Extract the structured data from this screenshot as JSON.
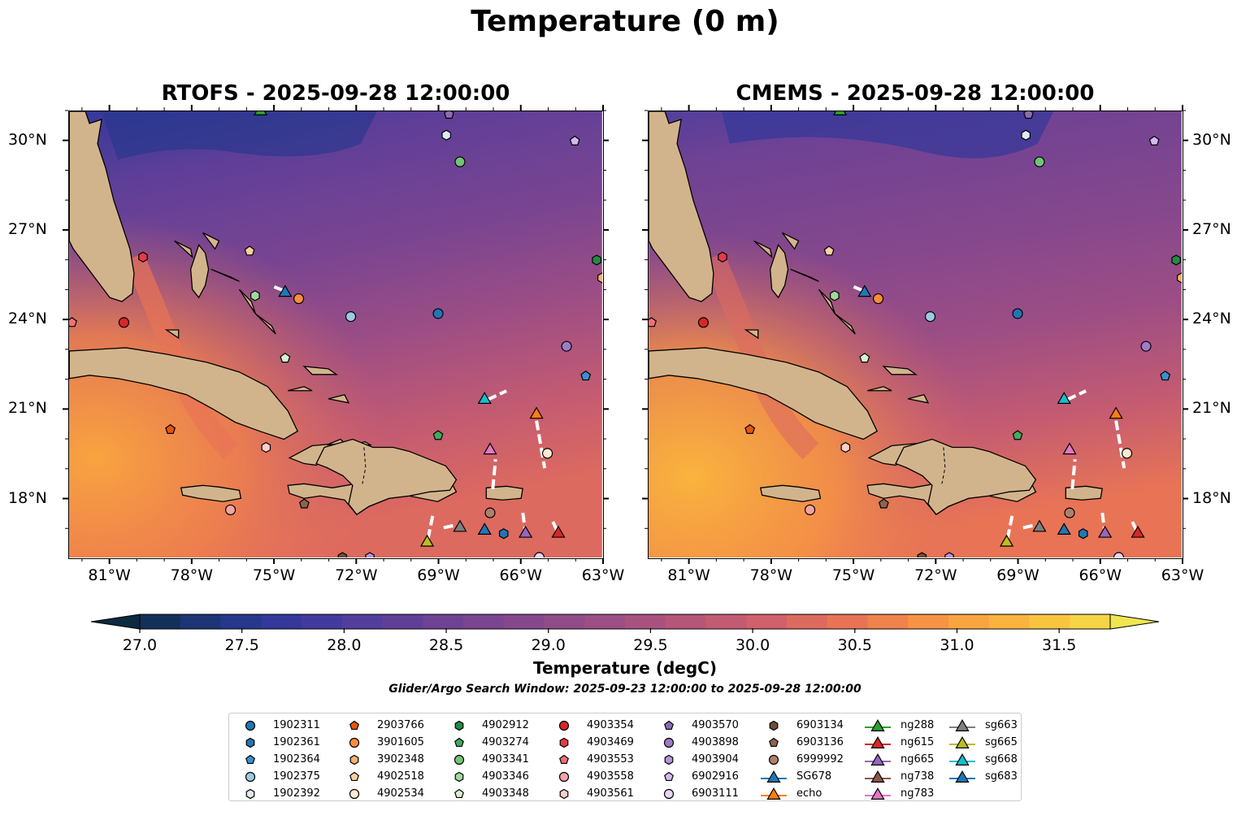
{
  "title": "Temperature (0 m)",
  "panels": [
    {
      "id": "rtofs",
      "title": "RTOFS - 2025-09-28 12:00:00"
    },
    {
      "id": "cmems",
      "title": "CMEMS - 2025-09-28 12:00:00"
    }
  ],
  "axes": {
    "lon_ticks": [
      "81°W",
      "78°W",
      "75°W",
      "72°W",
      "69°W",
      "66°W",
      "63°W"
    ],
    "lat_ticks": [
      "30°N",
      "27°N",
      "24°N",
      "21°N",
      "18°N"
    ]
  },
  "colorbar": {
    "label": "Temperature (degC)",
    "ticks": [
      "27.0",
      "27.5",
      "28.0",
      "28.5",
      "29.0",
      "29.5",
      "30.0",
      "30.5",
      "31.0",
      "31.5"
    ],
    "colors": [
      "#0b2a3f",
      "#13305a",
      "#1d3574",
      "#27378c",
      "#33389a",
      "#433a9e",
      "#523e9c",
      "#603f98",
      "#6e4294",
      "#7a4590",
      "#86488c",
      "#914b88",
      "#9d4e84",
      "#a9527f",
      "#b65679",
      "#c35b72",
      "#d0616a",
      "#dd6a5f",
      "#e87455",
      "#f1824b",
      "#f69344",
      "#f9a43f",
      "#fab43d",
      "#f9c43f",
      "#f5d546",
      "#efe650"
    ]
  },
  "search_window": "Glider/Argo Search Window: 2025-09-23 12:00:00 to 2025-09-28 12:00:00",
  "legend": [
    {
      "label": "1902311",
      "marker": "circle",
      "color": "#1f77b4"
    },
    {
      "label": "1902361",
      "marker": "hexagon",
      "color": "#1f77b4"
    },
    {
      "label": "1902364",
      "marker": "pentagon",
      "color": "#3a8fd1"
    },
    {
      "label": "1902375",
      "marker": "circle",
      "color": "#9ecae1"
    },
    {
      "label": "1902392",
      "marker": "hexagon",
      "color": "#deebf7"
    },
    {
      "label": "2903766",
      "marker": "pentagon",
      "color": "#e6550d"
    },
    {
      "label": "3901605",
      "marker": "circle",
      "color": "#fd8d3c"
    },
    {
      "label": "3902348",
      "marker": "hexagon",
      "color": "#fdae6b"
    },
    {
      "label": "4902518",
      "marker": "pentagon",
      "color": "#fdd0a2"
    },
    {
      "label": "4902534",
      "marker": "circle",
      "color": "#feead2"
    },
    {
      "label": "4902912",
      "marker": "hexagon",
      "color": "#238b45"
    },
    {
      "label": "4903274",
      "marker": "pentagon",
      "color": "#41ab5d"
    },
    {
      "label": "4903341",
      "marker": "circle",
      "color": "#74c476"
    },
    {
      "label": "4903346",
      "marker": "hexagon",
      "color": "#a1d99b"
    },
    {
      "label": "4903348",
      "marker": "pentagon",
      "color": "#d9f0d3"
    },
    {
      "label": "4903354",
      "marker": "circle",
      "color": "#d62728"
    },
    {
      "label": "4903469",
      "marker": "hexagon",
      "color": "#e8394a"
    },
    {
      "label": "4903553",
      "marker": "pentagon",
      "color": "#f0707a"
    },
    {
      "label": "4903558",
      "marker": "circle",
      "color": "#f5a3a3"
    },
    {
      "label": "4903561",
      "marker": "hexagon",
      "color": "#fbd0cc"
    },
    {
      "label": "4903570",
      "marker": "pentagon",
      "color": "#8c6bb1"
    },
    {
      "label": "4903898",
      "marker": "circle",
      "color": "#9e7bc8"
    },
    {
      "label": "4903904",
      "marker": "hexagon",
      "color": "#b596dd"
    },
    {
      "label": "6902916",
      "marker": "pentagon",
      "color": "#d2b9f0"
    },
    {
      "label": "6903111",
      "marker": "circle",
      "color": "#e6d4fa"
    },
    {
      "label": "6903134",
      "marker": "hexagon",
      "color": "#6f4e37"
    },
    {
      "label": "6903136",
      "marker": "pentagon",
      "color": "#8c6450"
    },
    {
      "label": "6999992",
      "marker": "circle",
      "color": "#b07f6c"
    },
    {
      "label": "SG678",
      "marker": "triangle-line",
      "color": "#1f77b4"
    },
    {
      "label": "echo",
      "marker": "triangle-line",
      "color": "#ff7f0e"
    },
    {
      "label": "ng288",
      "marker": "triangle-line",
      "color": "#2ca02c"
    },
    {
      "label": "ng615",
      "marker": "triangle-line",
      "color": "#d62728"
    },
    {
      "label": "ng665",
      "marker": "triangle-line",
      "color": "#9467bd"
    },
    {
      "label": "ng738",
      "marker": "triangle-line",
      "color": "#8c564b"
    },
    {
      "label": "ng783",
      "marker": "triangle-line",
      "color": "#e377c2"
    },
    {
      "label": "sg663",
      "marker": "triangle-line",
      "color": "#7f7f7f"
    },
    {
      "label": "sg665",
      "marker": "triangle-line",
      "color": "#bcbd22"
    },
    {
      "label": "sg668",
      "marker": "triangle-line",
      "color": "#17becf"
    },
    {
      "label": "sg683",
      "marker": "triangle-line",
      "color": "#1f77b4"
    }
  ],
  "markers": [
    {
      "id": "1902311",
      "marker": "circle",
      "color": "#1f77b4",
      "lon": -69.0,
      "lat": 24.2
    },
    {
      "id": "1902361",
      "marker": "hexagon",
      "color": "#1f77b4",
      "lon": -66.6,
      "lat": 16.8
    },
    {
      "id": "1902364",
      "marker": "pentagon",
      "color": "#3a8fd1",
      "lon": -63.6,
      "lat": 22.1
    },
    {
      "id": "1902375",
      "marker": "circle",
      "color": "#9ecae1",
      "lon": -72.2,
      "lat": 24.1
    },
    {
      "id": "1902392",
      "marker": "hexagon",
      "color": "#deebf7",
      "lon": -68.7,
      "lat": 30.2
    },
    {
      "id": "2903766",
      "marker": "pentagon",
      "color": "#e6550d",
      "lon": -78.8,
      "lat": 20.3
    },
    {
      "id": "3901605",
      "marker": "circle",
      "color": "#fd8d3c",
      "lon": -74.1,
      "lat": 24.7
    },
    {
      "id": "3902348",
      "marker": "hexagon",
      "color": "#fdae6b",
      "lon": -63.0,
      "lat": 25.4
    },
    {
      "id": "4902518",
      "marker": "pentagon",
      "color": "#fdd0a2",
      "lon": -75.9,
      "lat": 26.3
    },
    {
      "id": "4902534",
      "marker": "circle",
      "color": "#feead2",
      "lon": -65.0,
      "lat": 19.5
    },
    {
      "id": "4902912",
      "marker": "hexagon",
      "color": "#238b45",
      "lon": -63.2,
      "lat": 26.0
    },
    {
      "id": "4903274",
      "marker": "pentagon",
      "color": "#41ab5d",
      "lon": -69.0,
      "lat": 20.1
    },
    {
      "id": "4903341",
      "marker": "circle",
      "color": "#74c476",
      "lon": -68.2,
      "lat": 29.3
    },
    {
      "id": "4903346",
      "marker": "hexagon",
      "color": "#a1d99b",
      "lon": -75.7,
      "lat": 24.8
    },
    {
      "id": "4903348",
      "marker": "pentagon",
      "color": "#d9f0d3",
      "lon": -74.6,
      "lat": 22.7
    },
    {
      "id": "4903354",
      "marker": "circle",
      "color": "#d62728",
      "lon": -80.5,
      "lat": 23.9
    },
    {
      "id": "4903469",
      "marker": "hexagon",
      "color": "#e8394a",
      "lon": -79.8,
      "lat": 26.1
    },
    {
      "id": "4903553",
      "marker": "pentagon",
      "color": "#f0707a",
      "lon": -82.4,
      "lat": 23.9
    },
    {
      "id": "4903558",
      "marker": "circle",
      "color": "#f5a3a3",
      "lon": -76.6,
      "lat": 17.6
    },
    {
      "id": "4903561",
      "marker": "hexagon",
      "color": "#fbd0cc",
      "lon": -75.3,
      "lat": 19.7
    },
    {
      "id": "4903570",
      "marker": "pentagon",
      "color": "#8c6bb1",
      "lon": -68.6,
      "lat": 30.9
    },
    {
      "id": "4903898",
      "marker": "circle",
      "color": "#9e7bc8",
      "lon": -64.3,
      "lat": 23.1
    },
    {
      "id": "4903904",
      "marker": "hexagon",
      "color": "#b596dd",
      "lon": -71.5,
      "lat": 16.0
    },
    {
      "id": "6902916",
      "marker": "pentagon",
      "color": "#d2b9f0",
      "lon": -64.0,
      "lat": 30.0
    },
    {
      "id": "6903111",
      "marker": "circle",
      "color": "#e6d4fa",
      "lon": -65.3,
      "lat": 16.0
    },
    {
      "id": "6903134",
      "marker": "hexagon",
      "color": "#6f4e37",
      "lon": -72.5,
      "lat": 16.0
    },
    {
      "id": "6903136",
      "marker": "pentagon",
      "color": "#8c6450",
      "lon": -73.9,
      "lat": 17.8
    },
    {
      "id": "6999992",
      "marker": "circle",
      "color": "#b07f6c",
      "lon": -67.1,
      "lat": 17.5
    },
    {
      "id": "SG678",
      "marker": "triangle",
      "color": "#1f77b4",
      "lon": -67.3,
      "lat": 16.9
    },
    {
      "id": "echo",
      "marker": "triangle",
      "color": "#ff7f0e",
      "lon": -65.4,
      "lat": 20.8
    },
    {
      "id": "ng288",
      "marker": "triangle",
      "color": "#2ca02c",
      "lon": -75.5,
      "lat": 31.0
    },
    {
      "id": "ng615",
      "marker": "triangle",
      "color": "#d62728",
      "lon": -64.6,
      "lat": 16.8
    },
    {
      "id": "ng665",
      "marker": "triangle",
      "color": "#9467bd",
      "lon": -65.8,
      "lat": 16.8
    },
    {
      "id": "ng783",
      "marker": "triangle",
      "color": "#e377c2",
      "lon": -67.1,
      "lat": 19.6
    },
    {
      "id": "sg663",
      "marker": "triangle",
      "color": "#7f7f7f",
      "lon": -68.2,
      "lat": 17.0
    },
    {
      "id": "sg665",
      "marker": "triangle",
      "color": "#bcbd22",
      "lon": -69.4,
      "lat": 16.5
    },
    {
      "id": "sg668",
      "marker": "triangle",
      "color": "#17becf",
      "lon": -67.3,
      "lat": 21.3
    },
    {
      "id": "sg683",
      "marker": "triangle",
      "color": "#1f77b4",
      "lon": -74.6,
      "lat": 24.9
    }
  ],
  "tracks": [
    {
      "lons": [
        -75.0,
        -74.6
      ],
      "lats": [
        25.1,
        24.95
      ]
    },
    {
      "lons": [
        -67.2,
        -66.5
      ],
      "lats": [
        21.3,
        21.6
      ]
    },
    {
      "lons": [
        -67.0,
        -66.9
      ],
      "lats": [
        18.3,
        19.3
      ]
    },
    {
      "lons": [
        -65.4,
        -65.1
      ],
      "lats": [
        20.6,
        19.0
      ]
    },
    {
      "lons": [
        -69.2,
        -69.4
      ],
      "lats": [
        17.4,
        16.5
      ]
    },
    {
      "lons": [
        -68.8,
        -68.3
      ],
      "lats": [
        17.0,
        17.1
      ]
    },
    {
      "lons": [
        -65.9,
        -65.8
      ],
      "lats": [
        17.5,
        16.8
      ]
    },
    {
      "lons": [
        -64.8,
        -64.6
      ],
      "lats": [
        17.2,
        16.8
      ]
    }
  ],
  "map_extent": {
    "lon": [
      -82.5,
      -63.0
    ],
    "lat": [
      16.0,
      31.0
    ]
  },
  "colors": {
    "land": "#d2b48c",
    "coast": "#000000",
    "track": "#ffffff"
  }
}
